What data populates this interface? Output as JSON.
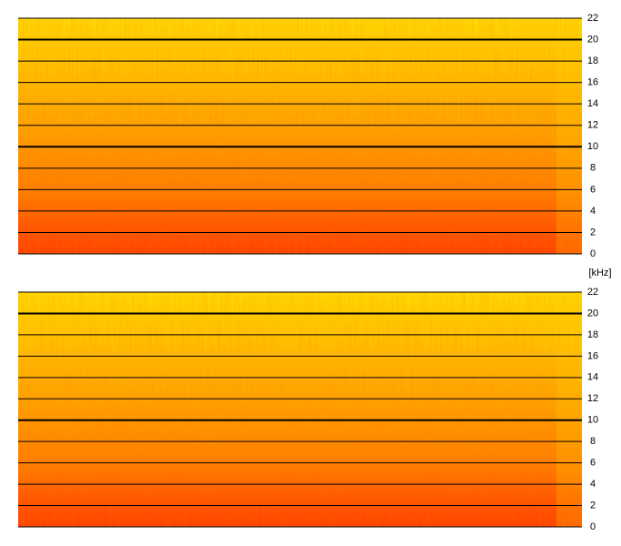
{
  "chart_data": [
    {
      "type": "spectrogram",
      "ylim": [
        0,
        22
      ],
      "yticks": [
        0,
        2,
        4,
        6,
        8,
        10,
        12,
        14,
        16,
        18,
        20,
        22
      ],
      "major_yticks": [
        10,
        20
      ],
      "grid": true,
      "ylabel": "[kHz]"
    },
    {
      "type": "spectrogram",
      "ylim": [
        0,
        22
      ],
      "yticks": [
        0,
        2,
        4,
        6,
        8,
        10,
        12,
        14,
        16,
        18,
        20,
        22
      ],
      "major_yticks": [
        10,
        20
      ],
      "grid": true
    }
  ]
}
